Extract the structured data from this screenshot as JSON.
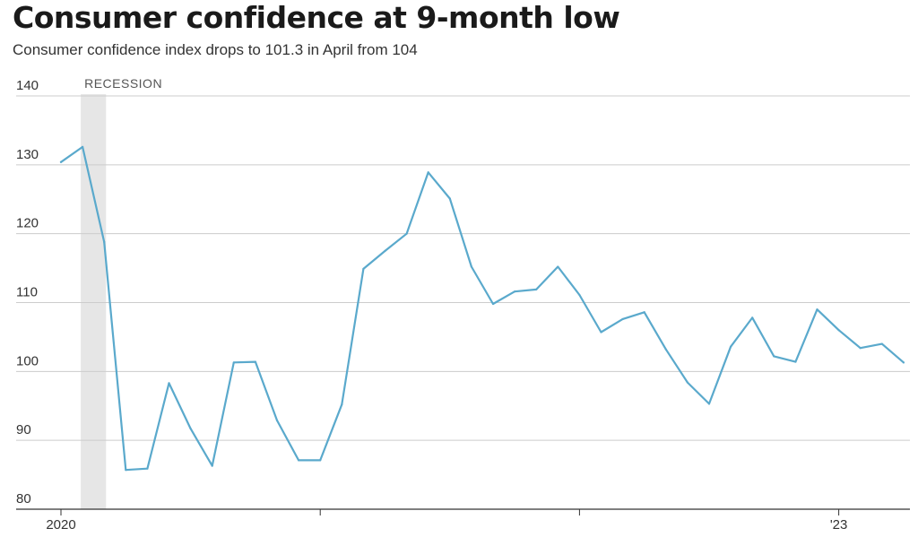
{
  "chart_data": {
    "type": "line",
    "title": "Consumer confidence at 9-month low",
    "subtitle": "Consumer confidence index drops to 101.3 in April from 104",
    "ylim": [
      80,
      140
    ],
    "yticks": [
      80,
      90,
      100,
      110,
      120,
      130,
      140
    ],
    "xticks": [
      {
        "index": 0,
        "label": "2020"
      },
      {
        "index": 12,
        "label": ""
      },
      {
        "index": 24,
        "label": ""
      },
      {
        "index": 36,
        "label": "'23"
      }
    ],
    "recession": {
      "label": "RECESSION",
      "start_index": 1,
      "end_index": 3
    },
    "grid": true,
    "colors": {
      "line": "#5aa9cc",
      "grid": "#cccccc",
      "recession": "#e6e6e6"
    },
    "series": [
      {
        "x": [
          "2020-01",
          "2020-02",
          "2020-03",
          "2020-04",
          "2020-05",
          "2020-06",
          "2020-07",
          "2020-08",
          "2020-09",
          "2020-10",
          "2020-11",
          "2020-12",
          "2021-01",
          "2021-02",
          "2021-03",
          "2021-04",
          "2021-05",
          "2021-06",
          "2021-07",
          "2021-08",
          "2021-09",
          "2021-10",
          "2021-11",
          "2021-12",
          "2022-01",
          "2022-02",
          "2022-03",
          "2022-04",
          "2022-05",
          "2022-06",
          "2022-07",
          "2022-08",
          "2022-09",
          "2022-10",
          "2022-11",
          "2022-12",
          "2023-01",
          "2023-02",
          "2023-03",
          "2023-04"
        ],
        "values": [
          130.4,
          132.6,
          118.8,
          85.7,
          85.9,
          98.3,
          91.7,
          86.3,
          101.3,
          101.4,
          92.9,
          87.1,
          87.1,
          95.2,
          114.9,
          117.5,
          120.0,
          128.9,
          125.1,
          115.2,
          109.8,
          111.6,
          111.9,
          115.2,
          111.1,
          105.7,
          107.6,
          108.6,
          103.2,
          98.4,
          95.3,
          103.6,
          107.8,
          102.2,
          101.4,
          109.0,
          106.0,
          103.4,
          104.0,
          101.3
        ]
      }
    ]
  }
}
